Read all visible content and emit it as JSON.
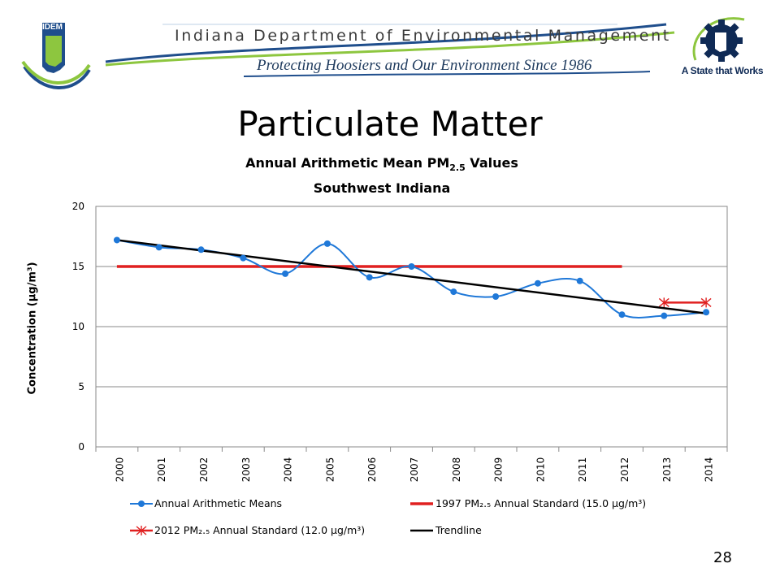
{
  "banner": {
    "department": "Indiana Department of Environmental Management",
    "tagline": "Protecting Hoosiers and Our Environment Since 1986",
    "left_logo_text": "IDEM",
    "right_logo_text": "A State that Works",
    "left_logo_icon": "indiana-state-outline-icon",
    "right_logo_icon": "gear-icon",
    "accent_colors": [
      "#1f4e8c",
      "#8dc63f"
    ]
  },
  "slide": {
    "title": "Particulate Matter",
    "page_number": "28"
  },
  "chart_data": {
    "type": "line",
    "title_line1": "Annual Arithmetic Mean PM",
    "title_sub": "2.5",
    "title_line1_suffix": " Values",
    "title_line2": "Southwest Indiana",
    "ylabel": "Concentration (µg/m³)",
    "xlabel": "",
    "ylim": [
      0,
      20
    ],
    "yticks": [
      0,
      5,
      10,
      15,
      20
    ],
    "grid": "horizontal",
    "legend_position": "bottom",
    "x": [
      "2000",
      "2001",
      "2002",
      "2003",
      "2004",
      "2005",
      "2006",
      "2007",
      "2008",
      "2009",
      "2010",
      "2011",
      "2012",
      "2013",
      "2014"
    ],
    "series": [
      {
        "name": "Annual Arithmetic Means",
        "kind": "smooth-line-markers",
        "color": "#1f78d8",
        "values": [
          17.2,
          16.6,
          16.4,
          15.7,
          14.4,
          16.9,
          14.1,
          15.0,
          12.9,
          12.5,
          13.6,
          13.8,
          11.0,
          10.9,
          11.2
        ]
      },
      {
        "name": "1997 PM₂.₅ Annual Standard (15.0 µg/m³)",
        "kind": "line",
        "color": "#e02020",
        "x_range": [
          "2000",
          "2012"
        ],
        "value": 15.0
      },
      {
        "name": "2012 PM₂.₅ Annual Standard (12.0 µg/m³)",
        "kind": "line-star-markers",
        "color": "#e02020",
        "x_range": [
          "2013",
          "2014"
        ],
        "value": 12.0
      },
      {
        "name": "Trendline",
        "kind": "line",
        "color": "#000000",
        "x_range": [
          "2000",
          "2014"
        ],
        "start_value": 17.2,
        "end_value": 11.1
      }
    ]
  }
}
